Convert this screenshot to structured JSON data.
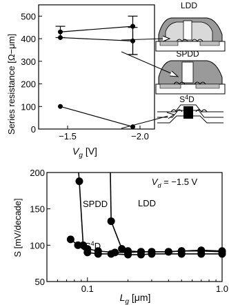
{
  "chart_data": [
    {
      "type": "line",
      "xlabel_main": "V",
      "xlabel_sub": "g",
      "xlabel_unit": " [V]",
      "ylabel": "Series resistance [Ω−μm]",
      "xlim": [
        -1.3,
        -2.1
      ],
      "ylim": [
        0,
        550
      ],
      "xticks": [
        -1.5,
        -2.0
      ],
      "xtick_labels": [
        "−1.5",
        "−2.0"
      ],
      "yticks": [
        0,
        100,
        200,
        300,
        400,
        500
      ],
      "ytick_labels": [
        "0",
        "100",
        "200",
        "300",
        "400",
        "500"
      ],
      "series": [
        {
          "x": [
            -1.45,
            -1.95
          ],
          "y": [
            430,
            455
          ],
          "error_bar": [
            -1.95,
            330,
            500
          ],
          "error_bar_left": [
            -1.45,
            405,
            455
          ]
        },
        {
          "x": [
            -1.45,
            -1.95
          ],
          "y": [
            405,
            390
          ],
          "error_bar": [
            -1.95,
            330,
            450
          ]
        },
        {
          "x": [
            -1.45,
            -1.95
          ],
          "y": [
            100,
            10
          ]
        }
      ],
      "device_labels": [
        "LDD",
        "SPDD",
        "S",
        "4",
        "D"
      ]
    },
    {
      "type": "scatter",
      "xscale": "log",
      "xlabel_main": "L",
      "xlabel_sub": "g",
      "xlabel_unit": " [μm]",
      "ylabel": "S [mV/decade]",
      "xlim": [
        0.05,
        1.0
      ],
      "ylim": [
        50,
        200
      ],
      "xticks": [
        0.1,
        1.0
      ],
      "xtick_labels": [
        "0.1",
        "1.0"
      ],
      "yticks": [
        50,
        100,
        150,
        200
      ],
      "ytick_labels": [
        "50",
        "100",
        "150",
        "200"
      ],
      "annotation": {
        "label": "V",
        "sub": "d",
        "value": " = −1.5 V"
      },
      "series": [
        {
          "name": "SPDD",
          "x": [
            0.087,
            0.093,
            0.1,
            0.12,
            0.16,
            0.2,
            0.25,
            0.3,
            0.4,
            0.5,
            0.7,
            1.0
          ],
          "y": [
            188,
            100,
            95,
            92,
            90,
            90,
            91,
            91,
            91,
            92,
            92,
            91
          ]
        },
        {
          "name": "LDD",
          "x": [
            0.15,
            0.18,
            0.2,
            0.25,
            0.3,
            0.4,
            0.5,
            0.7,
            1.0
          ],
          "y": [
            133,
            95,
            92,
            91,
            91,
            91,
            92,
            93,
            92
          ]
        },
        {
          "name": "S4D",
          "x": [
            0.075,
            0.085,
            0.1,
            0.12,
            0.15,
            0.2,
            0.25,
            0.3,
            0.5,
            0.7,
            1.0
          ],
          "y": [
            108,
            100,
            90,
            88,
            88,
            87,
            87,
            88,
            88,
            88,
            88
          ]
        }
      ],
      "series_labels": {
        "spdd": "SPDD",
        "ldd": "LDD",
        "s4d_main": "S",
        "s4d_sup": "4",
        "s4d_end": "D"
      }
    }
  ]
}
